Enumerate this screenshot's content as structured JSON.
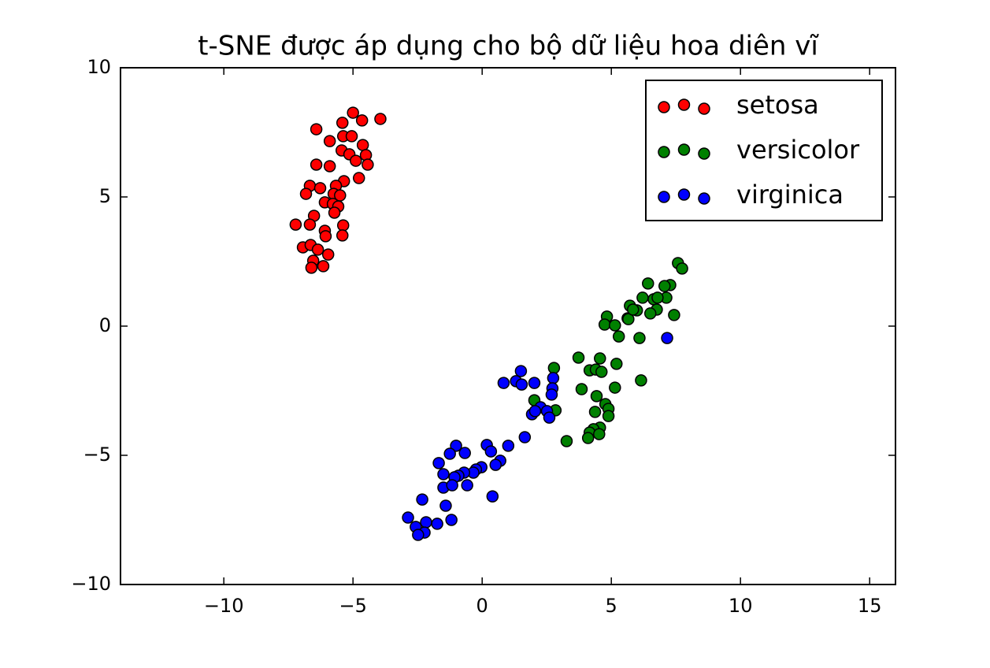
{
  "chart_data": {
    "type": "scatter",
    "title": "t-SNE được áp dụng cho bộ dữ liệu hoa diên vĩ",
    "xlim": [
      -14,
      16
    ],
    "ylim": [
      -10,
      10
    ],
    "xticks": [
      {
        "value": -10,
        "label": "−10"
      },
      {
        "value": -5,
        "label": "−5"
      },
      0,
      5,
      10,
      15
    ],
    "yticks": [
      {
        "value": -10,
        "label": "−10"
      },
      {
        "value": -5,
        "label": "−5"
      },
      0,
      5,
      10
    ],
    "legend": "upper right",
    "series": [
      {
        "name": "setosa",
        "color": "#ff0000",
        "x": [
          -5.0,
          -4.65,
          -3.94,
          -5.41,
          -6.42,
          -5.9,
          -5.38,
          -5.05,
          -4.62,
          -5.44,
          -5.14,
          -4.5,
          -4.89,
          -4.43,
          -6.42,
          -5.9,
          -4.77,
          -5.35,
          -6.67,
          -6.27,
          -5.66,
          -6.82,
          -5.75,
          -5.5,
          -6.09,
          -5.78,
          -5.57,
          -5.72,
          -6.51,
          -5.38,
          -7.22,
          -6.67,
          -6.09,
          -6.06,
          -5.41,
          -6.94,
          -6.64,
          -6.36,
          -5.96,
          -6.54,
          -6.61,
          -6.15
        ],
        "values": [
          8.26,
          7.96,
          8.02,
          7.87,
          7.62,
          7.16,
          7.35,
          7.35,
          7.01,
          6.8,
          6.65,
          6.62,
          6.4,
          6.25,
          6.25,
          6.19,
          5.73,
          5.61,
          5.43,
          5.34,
          5.43,
          5.12,
          5.12,
          5.06,
          4.79,
          4.73,
          4.63,
          4.39,
          4.27,
          3.9,
          3.93,
          3.93,
          3.69,
          3.48,
          3.51,
          3.05,
          3.14,
          2.96,
          2.77,
          2.53,
          2.26,
          2.32
        ]
      },
      {
        "name": "versicolor",
        "color": "#008000",
        "x": [
          7.58,
          7.74,
          7.28,
          7.06,
          6.42,
          6.21,
          7.13,
          6.64,
          5.72,
          5.99,
          6.76,
          6.51,
          4.83,
          5.63,
          5.66,
          7.43,
          4.74,
          5.14,
          5.29,
          6.09,
          3.73,
          4.56,
          4.16,
          4.4,
          4.62,
          5.2,
          6.15,
          3.85,
          5.14,
          4.43,
          2.02,
          4.77,
          2.84,
          4.89,
          4.37,
          4.89,
          4.56,
          4.31,
          4.16,
          4.53,
          4.1,
          3.27,
          2.78,
          6.79,
          5.84
        ],
        "values": [
          2.44,
          2.23,
          1.59,
          1.55,
          1.65,
          1.1,
          1.1,
          1.04,
          0.79,
          0.61,
          0.64,
          0.49,
          0.37,
          0.3,
          0.27,
          0.43,
          0.06,
          0.03,
          -0.4,
          -0.46,
          -1.22,
          -1.25,
          -1.71,
          -1.68,
          -1.77,
          -1.46,
          -2.1,
          -2.44,
          -2.38,
          -2.71,
          -2.87,
          -3.02,
          -3.26,
          -3.2,
          -3.32,
          -3.48,
          -3.93,
          -3.99,
          -4.12,
          -4.18,
          -4.33,
          -4.45,
          -1.62,
          1.1,
          0.64
        ]
      },
      {
        "name": "virginica",
        "color": "#0000ff",
        "x": [
          7.16,
          1.5,
          2.75,
          1.31,
          2.02,
          2.72,
          0.83,
          1.53,
          2.69,
          2.26,
          2.51,
          1.93,
          2.05,
          2.6,
          1.65,
          1.01,
          -1.01,
          0.18,
          0.34,
          -0.67,
          -1.25,
          0.7,
          0.52,
          -0.03,
          -1.68,
          -0.24,
          -0.34,
          -0.7,
          -0.92,
          -1.5,
          -1.07,
          -0.58,
          -1.5,
          -1.16,
          0.4,
          -2.32,
          -1.41,
          -2.87,
          -2.17,
          -1.19,
          -1.74,
          -2.57,
          -2.23,
          -2.48
        ],
        "values": [
          -0.46,
          -1.74,
          -2.01,
          -2.13,
          -2.2,
          -2.41,
          -2.2,
          -2.26,
          -2.65,
          -3.14,
          -3.29,
          -3.41,
          -3.29,
          -3.54,
          -4.3,
          -4.63,
          -4.63,
          -4.6,
          -4.85,
          -4.91,
          -4.94,
          -5.21,
          -5.37,
          -5.46,
          -5.3,
          -5.55,
          -5.67,
          -5.67,
          -5.79,
          -5.73,
          -5.85,
          -6.16,
          -6.25,
          -6.16,
          -6.59,
          -6.71,
          -6.95,
          -7.41,
          -7.59,
          -7.5,
          -7.65,
          -7.77,
          -7.99,
          -8.08
        ]
      }
    ]
  }
}
